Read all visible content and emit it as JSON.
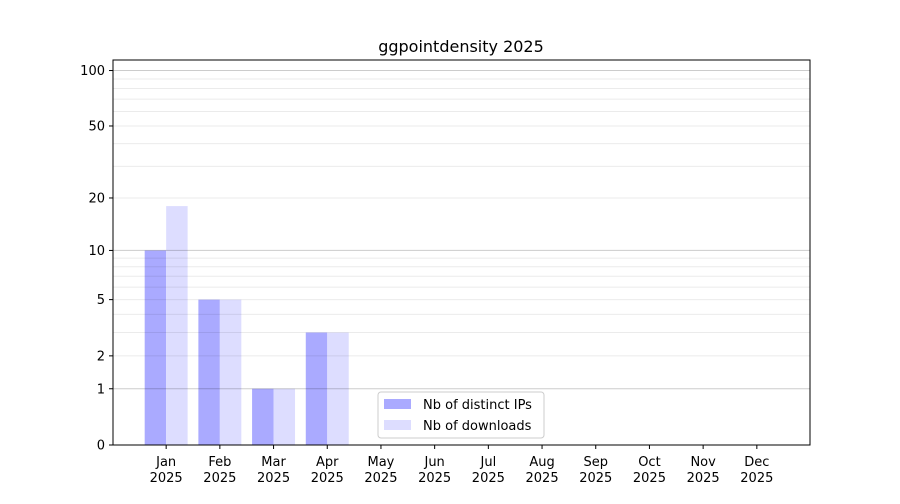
{
  "chart_data": {
    "type": "bar",
    "title": "ggpointdensity 2025",
    "xlabel": "",
    "ylabel": "",
    "y_scale": "log10(1+y)",
    "ylim": [
      0,
      114
    ],
    "y_ticks": [
      0,
      1,
      2,
      5,
      10,
      20,
      50,
      100
    ],
    "grid": true,
    "legend_placement": "lower-center",
    "categories": [
      [
        "Jan",
        "2025"
      ],
      [
        "Feb",
        "2025"
      ],
      [
        "Mar",
        "2025"
      ],
      [
        "Apr",
        "2025"
      ],
      [
        "May",
        "2025"
      ],
      [
        "Jun",
        "2025"
      ],
      [
        "Jul",
        "2025"
      ],
      [
        "Aug",
        "2025"
      ],
      [
        "Sep",
        "2025"
      ],
      [
        "Oct",
        "2025"
      ],
      [
        "Nov",
        "2025"
      ],
      [
        "Dec",
        "2025"
      ]
    ],
    "series": [
      {
        "name": "Nb of distinct IPs",
        "color": "#aaaaff",
        "values": [
          10,
          5,
          1,
          3,
          0,
          0,
          0,
          0,
          0,
          0,
          0,
          0
        ]
      },
      {
        "name": "Nb of downloads",
        "color": "#ddddff",
        "values": [
          18,
          5,
          1,
          3,
          0,
          0,
          0,
          0,
          0,
          0,
          0,
          0
        ]
      }
    ]
  }
}
